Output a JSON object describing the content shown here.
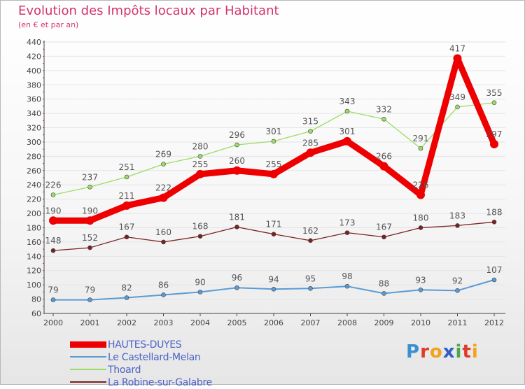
{
  "header": {
    "title": "Evolution des Impôts locaux par Habitant",
    "subtitle": "(en € et par an)"
  },
  "colors": {
    "title": "#d4336e",
    "axis": "#444444",
    "grid": "#e4e4e4",
    "tick_y": "#d4336e",
    "legend_text": "#4a62c8"
  },
  "logo": {
    "text": "Proxiti",
    "letters": [
      "P",
      "r",
      "o",
      "x",
      "i",
      "t",
      "i"
    ]
  },
  "chart_data": {
    "type": "line",
    "title": "Evolution des Impôts locaux par Habitant",
    "subtitle": "(en € et par an)",
    "xlabel": "",
    "ylabel": "",
    "ylim": [
      60,
      440
    ],
    "ytick_step": 20,
    "grid": true,
    "legend_position": "bottom-left",
    "x": [
      "2000",
      "2001",
      "2002",
      "2003",
      "2004",
      "2005",
      "2006",
      "2007",
      "2008",
      "2009",
      "2010",
      "2011",
      "2012"
    ],
    "series": [
      {
        "name": "HAUTES-DUYES",
        "color": "#ee0000",
        "values": [
          190,
          190,
          211,
          222,
          255,
          260,
          255,
          285,
          301,
          266,
          226,
          417,
          297
        ],
        "labels": [
          "190",
          "190",
          "211",
          "222",
          "255",
          "260",
          "255",
          "285",
          "301",
          "266",
          "226",
          "417",
          "297"
        ]
      },
      {
        "name": "Le Castellard-Melan",
        "color": "#5b9bd5",
        "values": [
          79,
          79,
          82,
          86,
          90,
          96,
          94,
          95,
          98,
          88,
          93,
          92,
          107
        ],
        "labels": [
          "79",
          "79",
          "82",
          "86",
          "90",
          "96",
          "94",
          "95",
          "98",
          "88",
          "93",
          "92",
          "107"
        ]
      },
      {
        "name": "Thoard",
        "color": "#99dd66",
        "values": [
          226,
          237,
          251,
          269,
          280,
          296,
          301,
          315,
          343,
          332,
          291,
          349,
          355
        ],
        "labels": [
          "226",
          "237",
          "251",
          "269",
          "280",
          "296",
          "301",
          "315",
          "343",
          "332",
          "291",
          "349",
          "355"
        ]
      },
      {
        "name": "La Robine-sur-Galabre",
        "color": "#7a2222",
        "values": [
          148,
          152,
          167,
          160,
          168,
          181,
          171,
          162,
          173,
          167,
          180,
          183,
          188
        ],
        "labels": [
          "148",
          "152",
          "167",
          "160",
          "168",
          "181",
          "171",
          "162",
          "173",
          "167",
          "180",
          "183",
          "188"
        ]
      }
    ]
  }
}
